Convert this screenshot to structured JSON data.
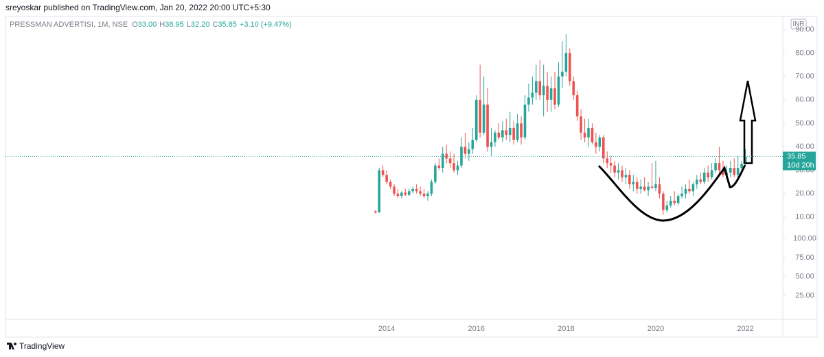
{
  "header": {
    "publisher": "sreyoskar published on TradingView.com, Jan 20, 2022 20:00 UTC+5:30",
    "footer": "TradingView"
  },
  "chart_data": {
    "type": "candlestick",
    "title": "PRESSMAN ADVERTISI, 1M, NSE",
    "legend": [
      {
        "key": "O",
        "value": "33.00"
      },
      {
        "key": "H",
        "value": "38.95"
      },
      {
        "key": "L",
        "value": "32.20"
      },
      {
        "key": "C",
        "value": "35.85"
      }
    ],
    "change": "+3.10 (+9.47%)",
    "currency": "INR",
    "countdown": "10d 20h",
    "up_color": "#26a69a",
    "down_color": "#ef5350",
    "x": [
      "2013-10",
      "2013-11",
      "2013-12",
      "2014-01",
      "2014-02",
      "2014-03",
      "2014-04",
      "2014-05",
      "2014-06",
      "2014-07",
      "2014-08",
      "2014-09",
      "2014-10",
      "2014-11",
      "2014-12",
      "2015-01",
      "2015-02",
      "2015-03",
      "2015-04",
      "2015-05",
      "2015-06",
      "2015-07",
      "2015-08",
      "2015-09",
      "2015-10",
      "2015-11",
      "2015-12",
      "2016-01",
      "2016-02",
      "2016-03",
      "2016-04",
      "2016-05",
      "2016-06",
      "2016-07",
      "2016-08",
      "2016-09",
      "2016-10",
      "2016-11",
      "2016-12",
      "2017-01",
      "2017-02",
      "2017-03",
      "2017-04",
      "2017-05",
      "2017-06",
      "2017-07",
      "2017-08",
      "2017-09",
      "2017-10",
      "2017-11",
      "2017-12",
      "2018-01",
      "2018-02",
      "2018-03",
      "2018-04",
      "2018-05",
      "2018-06",
      "2018-07",
      "2018-08",
      "2018-09",
      "2018-10",
      "2018-11",
      "2018-12",
      "2019-01",
      "2019-02",
      "2019-03",
      "2019-04",
      "2019-05",
      "2019-06",
      "2019-07",
      "2019-08",
      "2019-09",
      "2019-10",
      "2019-11",
      "2019-12",
      "2020-01",
      "2020-02",
      "2020-03",
      "2020-04",
      "2020-05",
      "2020-06",
      "2020-07",
      "2020-08",
      "2020-09",
      "2020-10",
      "2020-11",
      "2020-12",
      "2021-01",
      "2021-02",
      "2021-03",
      "2021-04",
      "2021-05",
      "2021-06",
      "2021-07",
      "2021-08",
      "2021-09",
      "2021-10",
      "2021-11",
      "2021-12",
      "2022-01"
    ],
    "ohlc": [
      [
        12.5,
        13,
        11.5,
        12
      ],
      [
        12,
        31,
        11.8,
        30
      ],
      [
        30,
        32,
        27,
        28
      ],
      [
        28,
        30,
        24,
        25
      ],
      [
        25,
        26,
        22,
        23
      ],
      [
        23,
        24,
        19,
        20
      ],
      [
        20,
        22,
        18,
        19
      ],
      [
        19,
        21,
        18,
        20.5
      ],
      [
        20.5,
        22,
        19,
        19.5
      ],
      [
        19.5,
        22,
        19,
        21
      ],
      [
        21,
        23,
        20,
        22
      ],
      [
        22,
        24,
        20,
        21
      ],
      [
        21,
        23,
        19,
        20
      ],
      [
        20,
        22,
        18,
        19
      ],
      [
        19,
        21,
        17,
        20
      ],
      [
        20,
        26,
        19,
        25
      ],
      [
        25,
        33,
        24,
        32
      ],
      [
        32,
        35,
        30,
        31
      ],
      [
        31,
        40,
        29,
        37
      ],
      [
        37,
        41,
        33,
        35
      ],
      [
        35,
        38,
        31,
        33
      ],
      [
        33,
        37,
        29,
        30
      ],
      [
        30,
        34,
        28,
        32
      ],
      [
        32,
        44,
        31,
        40
      ],
      [
        40,
        46,
        35,
        37
      ],
      [
        37,
        42,
        34,
        39
      ],
      [
        39,
        48,
        37,
        43
      ],
      [
        43,
        62,
        42,
        60
      ],
      [
        60,
        75,
        44,
        46
      ],
      [
        46,
        70,
        45,
        58
      ],
      [
        58,
        65,
        38,
        40
      ],
      [
        40,
        48,
        36,
        42
      ],
      [
        42,
        47,
        40,
        46
      ],
      [
        46,
        50,
        43,
        44
      ],
      [
        44,
        51,
        42,
        47
      ],
      [
        47,
        52,
        43,
        45
      ],
      [
        45,
        55,
        42,
        48
      ],
      [
        48,
        51,
        41,
        43
      ],
      [
        43,
        54,
        42,
        50
      ],
      [
        50,
        53,
        41,
        44
      ],
      [
        44,
        62,
        43,
        58
      ],
      [
        58,
        67,
        55,
        61
      ],
      [
        61,
        70,
        58,
        63
      ],
      [
        63,
        75,
        60,
        68
      ],
      [
        68,
        77,
        60,
        62
      ],
      [
        62,
        75,
        53,
        66
      ],
      [
        66,
        72,
        55,
        60
      ],
      [
        60,
        70,
        55,
        65
      ],
      [
        65,
        72,
        56,
        58
      ],
      [
        58,
        76,
        57,
        70
      ],
      [
        70,
        85,
        65,
        72
      ],
      [
        72,
        88,
        70,
        80
      ],
      [
        80,
        82,
        66,
        68
      ],
      [
        68,
        70,
        60,
        62
      ],
      [
        62,
        64,
        51,
        53
      ],
      [
        53,
        56,
        43,
        46
      ],
      [
        46,
        52,
        42,
        44
      ],
      [
        44,
        52,
        40,
        48
      ],
      [
        48,
        50,
        41,
        42
      ],
      [
        42,
        46,
        37,
        40
      ],
      [
        40,
        45,
        38,
        44
      ],
      [
        44,
        45,
        33,
        35
      ],
      [
        35,
        38,
        31,
        33
      ],
      [
        33,
        36,
        29,
        32
      ],
      [
        32,
        34,
        27,
        29
      ],
      [
        29,
        33,
        26,
        30
      ],
      [
        30,
        32,
        25,
        27
      ],
      [
        27,
        31,
        24,
        28
      ],
      [
        28,
        30,
        22,
        24
      ],
      [
        24,
        28,
        21,
        25
      ],
      [
        25,
        27,
        20,
        22
      ],
      [
        22,
        26,
        20,
        23
      ],
      [
        23,
        27,
        21,
        21.5
      ],
      [
        21.5,
        25,
        19,
        23
      ],
      [
        23,
        33,
        22,
        22.5
      ],
      [
        22.5,
        34,
        21,
        24
      ],
      [
        24,
        27,
        18,
        20
      ],
      [
        20,
        21,
        11,
        13
      ],
      [
        13,
        17,
        12,
        15
      ],
      [
        15,
        19,
        14,
        17
      ],
      [
        17,
        21,
        15,
        16
      ],
      [
        16,
        20,
        15,
        19
      ],
      [
        19,
        23,
        18,
        20
      ],
      [
        20,
        24,
        18,
        22
      ],
      [
        22,
        26,
        20,
        21
      ],
      [
        21,
        25,
        19,
        24
      ],
      [
        24,
        28,
        22,
        26
      ],
      [
        26,
        29,
        24,
        25
      ],
      [
        25,
        31,
        24,
        29
      ],
      [
        29,
        32,
        25,
        27
      ],
      [
        27,
        33,
        26,
        30
      ],
      [
        30,
        35,
        29,
        33
      ],
      [
        33,
        40,
        28,
        30
      ],
      [
        30,
        34,
        27,
        28
      ],
      [
        28,
        32,
        26,
        29
      ],
      [
        29,
        34,
        27,
        31
      ],
      [
        31,
        35,
        27,
        28
      ],
      [
        28,
        36,
        27,
        31
      ],
      [
        31,
        34,
        30,
        32.75
      ],
      [
        33,
        38.95,
        32.2,
        35.85
      ]
    ],
    "xlim": [
      "2005-07",
      "2022-11"
    ],
    "xticks": [
      2014,
      2016,
      2018,
      2020,
      2022
    ],
    "ylim": [
      -33.6,
      95.6
    ],
    "yticks": [
      {
        "value": 90,
        "label": "90.00"
      },
      {
        "value": 80,
        "label": "80.00"
      },
      {
        "value": 70,
        "label": "70.00"
      },
      {
        "value": 60,
        "label": "60.00"
      },
      {
        "value": 50,
        "label": "50.00"
      },
      {
        "value": 40,
        "label": "40.00"
      },
      {
        "value": 30,
        "label": "30.00"
      },
      {
        "value": 20,
        "label": "20.00"
      },
      {
        "value": 10,
        "label": "10.00"
      }
    ],
    "y2lim": [
      -6,
      392
    ],
    "y2ticks": [
      {
        "value": 100,
        "label": "100.00"
      },
      {
        "value": 75,
        "label": "75.00"
      },
      {
        "value": 50,
        "label": "50.00"
      },
      {
        "value": 25,
        "label": "25.00"
      }
    ]
  }
}
